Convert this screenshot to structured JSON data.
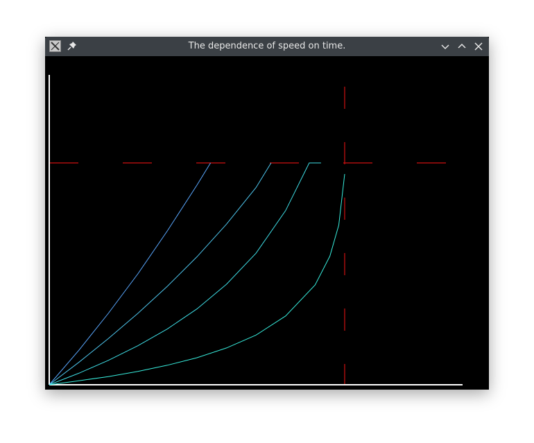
{
  "window": {
    "title": "The dependence of speed on time."
  },
  "icons": {
    "app": "app-icon",
    "pin": "pin-icon",
    "minimize": "chevron-down-icon",
    "maximize": "chevron-up-icon",
    "close": "close-icon"
  },
  "colors": {
    "background": "#000000",
    "axes": "#ffffff",
    "limit_lines": "#d01010",
    "curves": [
      "#5aa8ff",
      "#4fc8f0",
      "#3fe0e8",
      "#38f0e0"
    ]
  },
  "chart_data": {
    "type": "line",
    "title": "",
    "xlabel": "",
    "ylabel": "",
    "xlim": [
      0,
      1.4
    ],
    "ylim": [
      0,
      1.35
    ],
    "grid": false,
    "limits": {
      "x": 1.0,
      "y": 1.0
    },
    "series": [
      {
        "x": [
          0,
          0.1,
          0.2,
          0.3,
          0.4,
          0.5,
          0.546
        ],
        "y": [
          0,
          0.155,
          0.322,
          0.5,
          0.694,
          0.9,
          1.0
        ]
      },
      {
        "x": [
          0,
          0.1,
          0.2,
          0.3,
          0.4,
          0.5,
          0.6,
          0.7,
          0.751
        ],
        "y": [
          0,
          0.101,
          0.208,
          0.322,
          0.444,
          0.577,
          0.724,
          0.889,
          1.0
        ]
      },
      {
        "x": [
          0,
          0.1,
          0.2,
          0.3,
          0.4,
          0.5,
          0.6,
          0.7,
          0.8,
          0.88,
          0.92
        ],
        "y": [
          0,
          0.052,
          0.11,
          0.176,
          0.252,
          0.342,
          0.453,
          0.593,
          0.785,
          1.0,
          1.0
        ]
      },
      {
        "x": [
          0,
          0.1,
          0.2,
          0.3,
          0.4,
          0.5,
          0.6,
          0.7,
          0.8,
          0.9,
          0.95,
          0.98,
          1.0
        ],
        "y": [
          0,
          0.018,
          0.037,
          0.06,
          0.088,
          0.122,
          0.166,
          0.224,
          0.31,
          0.45,
          0.58,
          0.72,
          0.95
        ]
      }
    ]
  }
}
